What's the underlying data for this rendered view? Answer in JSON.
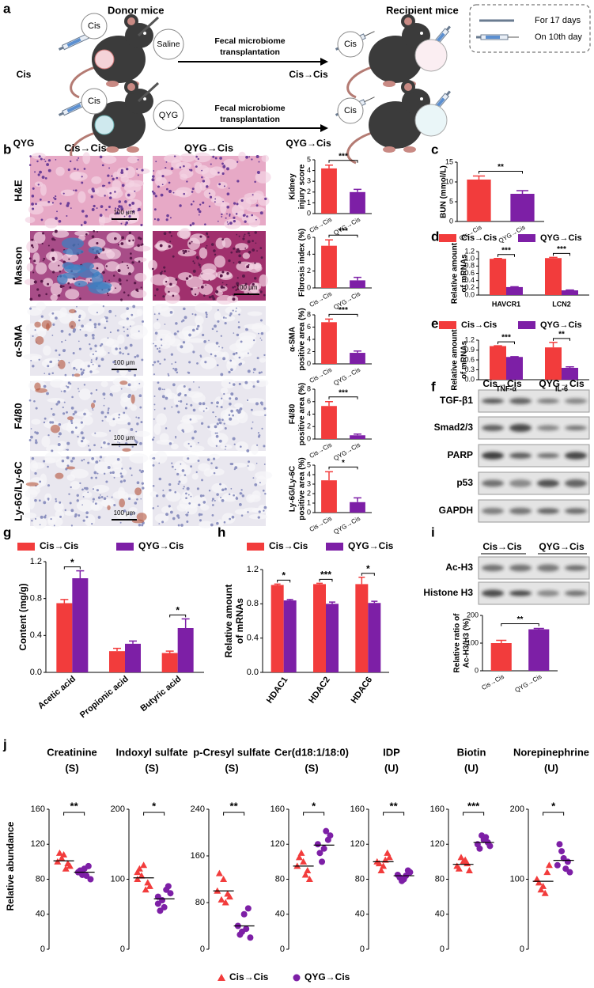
{
  "panel_labels": [
    "a",
    "b",
    "c",
    "d",
    "e",
    "f",
    "g",
    "h",
    "i",
    "j"
  ],
  "schematic": {
    "donor_title": "Donor mice",
    "recipient_title": "Recipient mice",
    "rows": [
      {
        "label": "Cis",
        "donor_drug": "Cis",
        "gavage": "Saline",
        "arrow": [
          "Fecal microbiome",
          "transplantation"
        ],
        "recipient_drug": "Cis",
        "result": "Cis→Cis"
      },
      {
        "label": "QYG",
        "donor_drug": "Cis",
        "gavage": "QYG",
        "arrow": [
          "Fecal microbiome",
          "transplantation"
        ],
        "recipient_drug": "Cis",
        "result": "QYG→Cis"
      }
    ],
    "legend": [
      "For 17 days",
      "On 10th day"
    ]
  },
  "histology": {
    "columns": [
      "Cis→Cis",
      "QYG→Cis"
    ],
    "rows": [
      "H&E",
      "Masson",
      "α-SMA",
      "F4/80",
      "Ly-6G/Ly-6C"
    ],
    "scale_bar": "100 μm"
  },
  "blot_f": {
    "columns": [
      "Cis→Cis",
      "QYG→Cis"
    ],
    "rows": [
      "TGF-β1",
      "Smad2/3",
      "PARP",
      "p53",
      "GAPDH"
    ]
  },
  "blot_i": {
    "columns": [
      "Cis→Cis",
      "QYG→Cis"
    ],
    "rows": [
      "Ac-H3",
      "Histone H3"
    ]
  },
  "strip_panel": {
    "ylabel": "Relative abundance",
    "legend": [
      {
        "name": "Cis→Cis",
        "color": "#f23c3c",
        "marker": "triangle"
      },
      {
        "name": "QYG→Cis",
        "color": "#7d1fa6",
        "marker": "circle"
      }
    ]
  },
  "chart_data": [
    {
      "type": "bar",
      "ylabel": [
        "Kidney",
        "injury score"
      ],
      "categories": [
        "Cis→Cis",
        "QYG→Cis"
      ],
      "values": [
        4.2,
        2.0
      ],
      "errors": [
        0.3,
        0.25
      ],
      "colors": [
        "#f23c3c",
        "#7d1fa6"
      ],
      "ylim": [
        0,
        5
      ],
      "yticks": [
        0,
        1,
        2,
        3,
        4,
        5
      ],
      "significance": "***"
    },
    {
      "type": "bar",
      "ylabel": [
        "Fibrosis index (%)"
      ],
      "categories": [
        "Cis→Cis",
        "QYG→Cis"
      ],
      "values": [
        5.0,
        0.9
      ],
      "errors": [
        0.7,
        0.35
      ],
      "colors": [
        "#f23c3c",
        "#7d1fa6"
      ],
      "ylim": [
        0,
        6
      ],
      "yticks": [
        0,
        2,
        4,
        6
      ],
      "significance": "***"
    },
    {
      "type": "bar",
      "ylabel": [
        "α-SMA",
        "positive area (%)"
      ],
      "categories": [
        "Cis→Cis",
        "QYG→Cis"
      ],
      "values": [
        6.8,
        1.8
      ],
      "errors": [
        0.5,
        0.3
      ],
      "colors": [
        "#f23c3c",
        "#7d1fa6"
      ],
      "ylim": [
        0,
        8
      ],
      "yticks": [
        0,
        2,
        4,
        6,
        8
      ],
      "significance": "***"
    },
    {
      "type": "bar",
      "ylabel": [
        "F4/80",
        "positive area (%)"
      ],
      "categories": [
        "Cis→Cis",
        "QYG→Cis"
      ],
      "values": [
        5.3,
        0.6
      ],
      "errors": [
        0.7,
        0.2
      ],
      "colors": [
        "#f23c3c",
        "#7d1fa6"
      ],
      "ylim": [
        0,
        8
      ],
      "yticks": [
        0,
        2,
        4,
        6,
        8
      ],
      "significance": "***"
    },
    {
      "type": "bar",
      "ylabel": [
        "Ly-6G/Ly-6C",
        "positive area (%)"
      ],
      "categories": [
        "Cis→Cis",
        "QYG→Cis"
      ],
      "values": [
        3.4,
        1.1
      ],
      "errors": [
        0.9,
        0.45
      ],
      "colors": [
        "#f23c3c",
        "#7d1fa6"
      ],
      "ylim": [
        0,
        5
      ],
      "yticks": [
        0,
        1,
        2,
        3,
        4,
        5
      ],
      "significance": "*"
    },
    {
      "type": "bar",
      "ylabel": [
        "BUN (mmol/L)"
      ],
      "categories": [
        "Cis→Cis",
        "QYG→Cis"
      ],
      "values": [
        10.6,
        7.0
      ],
      "errors": [
        0.9,
        0.8
      ],
      "colors": [
        "#f23c3c",
        "#7d1fa6"
      ],
      "ylim": [
        0,
        15
      ],
      "yticks": [
        0,
        5,
        10,
        15
      ],
      "significance": "**"
    },
    {
      "type": "bar",
      "ylabel": [
        "Relative amount",
        "of mRNAs"
      ],
      "categories": [
        "HAVCR1",
        "LCN2"
      ],
      "series": [
        {
          "name": "Cis→Cis",
          "color": "#f23c3c",
          "values": [
            1.0,
            1.02
          ],
          "errors": [
            0.01,
            0.02
          ]
        },
        {
          "name": "QYG→Cis",
          "color": "#7d1fa6",
          "values": [
            0.22,
            0.13
          ],
          "errors": [
            0.01,
            0.01
          ]
        }
      ],
      "ylim": [
        0,
        1.2
      ],
      "yticks": [
        {
          "value": 0,
          "label": "0.0"
        },
        0.2,
        0.4,
        0.6,
        0.8,
        {
          "value": 1,
          "label": "1.0"
        },
        1.2
      ],
      "significance": [
        "***",
        "***"
      ],
      "legend": "top"
    },
    {
      "type": "bar",
      "ylabel": [
        "Relative amount",
        "of mRNAs"
      ],
      "categories": [
        "TNF-α",
        "IL-6"
      ],
      "series": [
        {
          "name": "Cis→Cis",
          "color": "#f23c3c",
          "values": [
            1.02,
            0.98
          ],
          "errors": [
            0.01,
            0.15
          ]
        },
        {
          "name": "QYG→Cis",
          "color": "#7d1fa6",
          "values": [
            0.69,
            0.36
          ],
          "errors": [
            0.01,
            0.03
          ]
        }
      ],
      "ylim": [
        0,
        1.2
      ],
      "yticks": [
        {
          "value": 0,
          "label": "0.0"
        },
        0.3,
        0.6,
        0.9,
        1.2
      ],
      "significance": [
        "***",
        "**"
      ],
      "legend": "top"
    },
    {
      "type": "bar",
      "ylabel": [
        "Content (mg/g)"
      ],
      "categories": [
        "Acetic acid",
        "Propionic acid",
        "Butyric acid"
      ],
      "series": [
        {
          "name": "Cis→Cis",
          "color": "#f23c3c",
          "values": [
            0.75,
            0.23,
            0.21
          ],
          "errors": [
            0.04,
            0.03,
            0.02
          ]
        },
        {
          "name": "QYG→Cis",
          "color": "#7d1fa6",
          "values": [
            1.02,
            0.31,
            0.48
          ],
          "errors": [
            0.08,
            0.03,
            0.1
          ]
        }
      ],
      "ylim": [
        0,
        1.2
      ],
      "yticks": [
        {
          "value": 0,
          "label": "0.0"
        },
        0.4,
        0.8,
        1.2
      ],
      "significance": [
        "*",
        null,
        "*"
      ],
      "legend": "top"
    },
    {
      "type": "bar",
      "ylabel": [
        "Relative amount",
        "of mRNAs"
      ],
      "categories": [
        "HDAC1",
        "HDAC2",
        "HDAC6"
      ],
      "series": [
        {
          "name": "Cis→Cis",
          "color": "#f23c3c",
          "values": [
            1.02,
            1.03,
            1.03
          ],
          "errors": [
            0.01,
            0.01,
            0.08
          ]
        },
        {
          "name": "QYG→Cis",
          "color": "#7d1fa6",
          "values": [
            0.84,
            0.8,
            0.81
          ],
          "errors": [
            0.01,
            0.02,
            0.02
          ]
        }
      ],
      "ylim": [
        0,
        1.2
      ],
      "yticks": [
        {
          "value": 0,
          "label": "0.0"
        },
        0.4,
        0.8,
        1.2
      ],
      "significance": [
        "*",
        "***",
        "*"
      ],
      "legend": "top"
    },
    {
      "type": "bar",
      "ylabel": [
        "Relative ratio of",
        "Ac-H3/H3 (%)"
      ],
      "categories": [
        "Cis→Cis",
        "QYG→Cis"
      ],
      "values": [
        100,
        150
      ],
      "errors": [
        10,
        3
      ],
      "colors": [
        "#f23c3c",
        "#7d1fa6"
      ],
      "ylim": [
        0,
        200
      ],
      "yticks": [
        0,
        100,
        200
      ],
      "significance": "**"
    },
    {
      "type": "strip",
      "title": [
        "Creatinine",
        "(S)"
      ],
      "series": [
        {
          "values": [
            100,
            108,
            95,
            104,
            98,
            110,
            92
          ],
          "mean": 101
        },
        {
          "values": [
            88,
            92,
            80,
            85,
            95,
            90,
            84
          ],
          "mean": 88
        }
      ],
      "ylim": [
        0,
        160
      ],
      "yticks": [
        0,
        40,
        80,
        120,
        160
      ],
      "significance": "**"
    },
    {
      "type": "strip",
      "title": [
        "Indoxyl sulfate",
        "(S)"
      ],
      "series": [
        {
          "values": [
            100,
            120,
            90,
            105,
            95,
            115,
            85,
            110
          ],
          "mean": 102
        },
        {
          "values": [
            75,
            60,
            80,
            70,
            90,
            55,
            85,
            65
          ],
          "mean": 72
        }
      ],
      "ylim": [
        0,
        200
      ],
      "yticks": [
        0,
        100,
        200
      ],
      "significance": "*"
    },
    {
      "type": "strip",
      "title": [
        "p-Cresyl sulfate",
        "(S)"
      ],
      "series": [
        {
          "values": [
            100,
            120,
            90,
            85,
            95,
            130,
            80
          ],
          "mean": 100
        },
        {
          "values": [
            40,
            60,
            20,
            30,
            70,
            25,
            35
          ],
          "mean": 40
        }
      ],
      "ylim": [
        0,
        240
      ],
      "yticks": [
        0,
        80,
        160,
        240
      ],
      "significance": "**"
    },
    {
      "type": "strip",
      "title": [
        "Cer(d18:1/18:0)",
        "(S)"
      ],
      "series": [
        {
          "values": [
            95,
            100,
            80,
            110,
            90,
            105,
            85
          ],
          "mean": 95
        },
        {
          "values": [
            120,
            115,
            130,
            100,
            125,
            110,
            135
          ],
          "mean": 119
        }
      ],
      "ylim": [
        0,
        160
      ],
      "yticks": [
        0,
        40,
        80,
        120,
        160
      ],
      "significance": "*"
    },
    {
      "type": "strip",
      "title": [
        "IDP",
        "(U)"
      ],
      "series": [
        {
          "values": [
            100,
            95,
            105,
            90,
            110,
            98,
            102
          ],
          "mean": 100
        },
        {
          "values": [
            85,
            80,
            88,
            78,
            90,
            82,
            84
          ],
          "mean": 84
        }
      ],
      "ylim": [
        0,
        160
      ],
      "yticks": [
        0,
        40,
        80,
        120,
        160
      ],
      "significance": "**"
    },
    {
      "type": "strip",
      "title": [
        "Biotin",
        "(U)"
      ],
      "series": [
        {
          "values": [
            95,
            100,
            90,
            105,
            98,
            92,
            102
          ],
          "mean": 97
        },
        {
          "values": [
            120,
            125,
            118,
            130,
            122,
            115,
            128
          ],
          "mean": 122
        }
      ],
      "ylim": [
        0,
        160
      ],
      "yticks": [
        0,
        40,
        80,
        120,
        160
      ],
      "significance": "***"
    },
    {
      "type": "strip",
      "title": [
        "Norepinephrine",
        "(U)"
      ],
      "series": [
        {
          "values": [
            100,
            90,
            120,
            85,
            110,
            95,
            80
          ],
          "mean": 97
        },
        {
          "values": [
            120,
            130,
            110,
            140,
            125,
            150,
            115
          ],
          "mean": 127
        }
      ],
      "ylim": [
        0,
        200
      ],
      "yticks": [
        0,
        100,
        200
      ],
      "significance": "*"
    }
  ]
}
